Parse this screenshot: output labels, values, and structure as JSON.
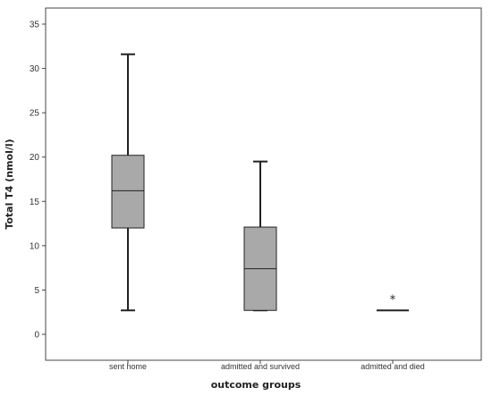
{
  "chart_data": {
    "type": "boxplot",
    "title": "",
    "xlabel": "outcome groups",
    "ylabel": "Total T4 (nmol/l)",
    "ylim": [
      0,
      35
    ],
    "yticks": [
      0,
      5,
      10,
      15,
      20,
      25,
      30,
      35
    ],
    "grid": false,
    "categories": [
      "sent home",
      "admitted and survived",
      "admitted and died"
    ],
    "boxes": [
      {
        "whisker_low": 2.7,
        "q1": 12.0,
        "median": 16.2,
        "q3": 20.2,
        "whisker_high": 31.6,
        "outliers": []
      },
      {
        "whisker_low": 2.7,
        "q1": 2.7,
        "median": 7.4,
        "q3": 12.1,
        "whisker_high": 19.5,
        "outliers": []
      },
      {
        "whisker_low": 2.7,
        "q1": 2.7,
        "median": 2.7,
        "q3": 2.7,
        "whisker_high": 2.7,
        "outliers": [
          4.3
        ]
      }
    ],
    "outlier_marker": "*",
    "colors": {
      "box_fill": "#a9a9a9",
      "line": "#222222",
      "frame": "#444444"
    }
  }
}
